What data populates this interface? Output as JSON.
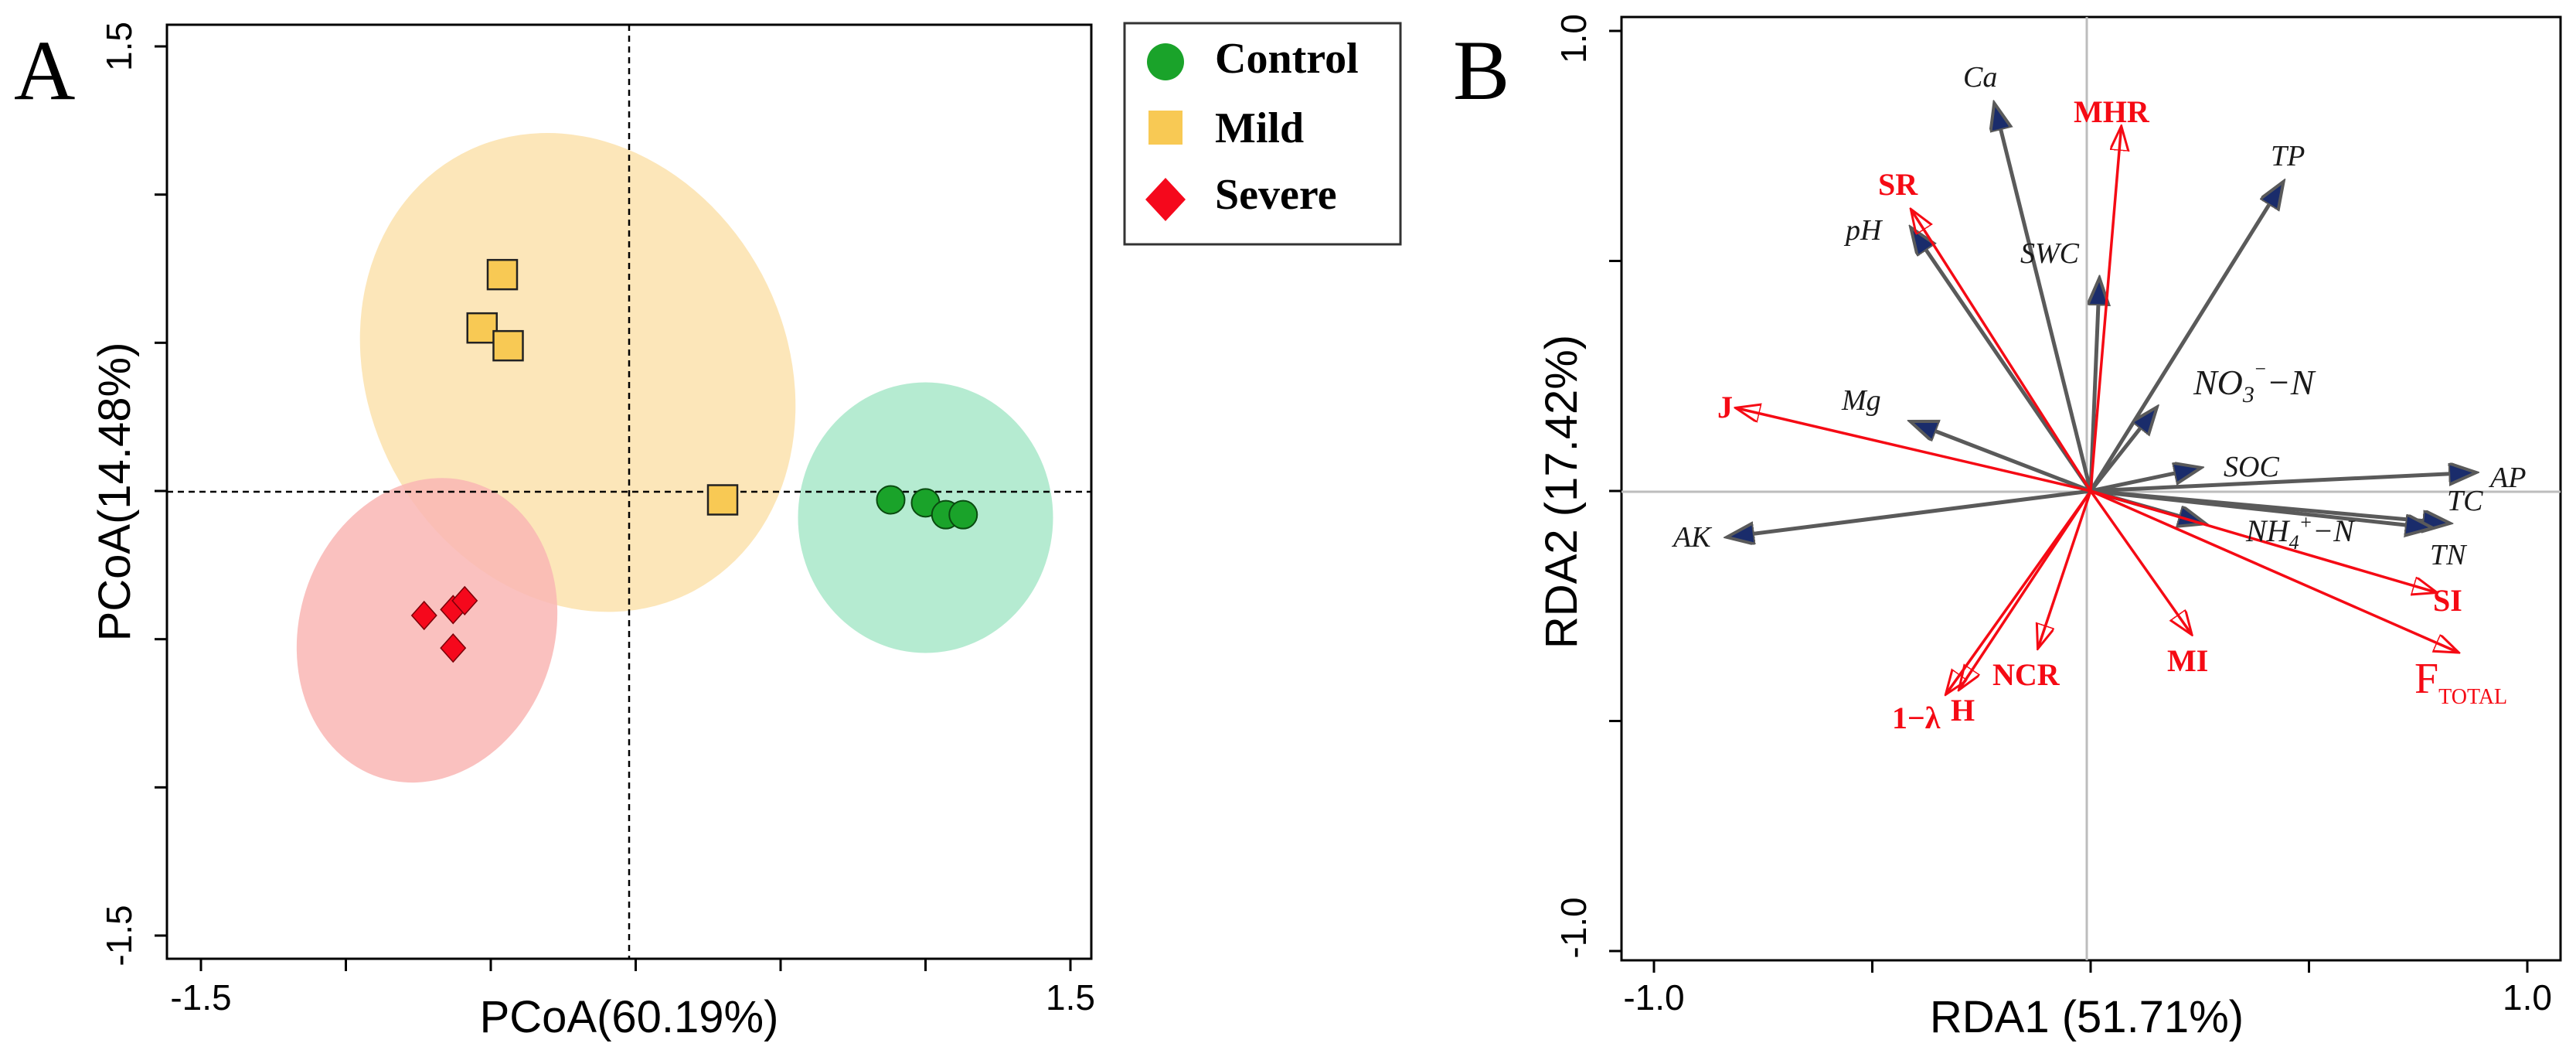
{
  "panels": {
    "a": {
      "letter": "A"
    },
    "b": {
      "letter": "B"
    }
  },
  "legend": {
    "items": [
      {
        "label": "Control",
        "marker": "circle",
        "color": "#1aa32a"
      },
      {
        "label": "Mild",
        "marker": "square",
        "color": "#f8c954"
      },
      {
        "label": "Severe",
        "marker": "diamond",
        "color": "#f5081c"
      }
    ]
  },
  "chart_data": [
    {
      "type": "scatter",
      "panel": "A",
      "xlabel": "PCoA(60.19%)",
      "ylabel": "PCoA(14.48%)",
      "xlim": [
        -1.5,
        1.5
      ],
      "ylim": [
        -1.5,
        1.5
      ],
      "x_tick_labels": [
        "-1.5",
        "1.5"
      ],
      "y_tick_labels": [
        "-1.5",
        "1.5"
      ],
      "reference_lines": {
        "x": 0,
        "y": 0
      },
      "series": [
        {
          "name": "Control",
          "marker": "circle",
          "color": "#1aa32a",
          "ellipse_color": "#a8e8c9",
          "points": [
            [
              0.88,
              -0.03
            ],
            [
              1.0,
              -0.04
            ],
            [
              1.07,
              -0.08
            ],
            [
              1.13,
              -0.08
            ]
          ]
        },
        {
          "name": "Mild",
          "marker": "square",
          "color": "#f8c954",
          "ellipse_color": "#fbe2ad",
          "points": [
            [
              -0.46,
              0.73
            ],
            [
              -0.53,
              0.55
            ],
            [
              -0.44,
              0.49
            ],
            [
              0.3,
              -0.03
            ]
          ]
        },
        {
          "name": "Severe",
          "marker": "diamond",
          "color": "#f5081c",
          "ellipse_color": "#f9b6b4",
          "points": [
            [
              -0.63,
              -0.4
            ],
            [
              -0.59,
              -0.37
            ],
            [
              -0.63,
              -0.53
            ],
            [
              -0.73,
              -0.42
            ]
          ]
        }
      ]
    },
    {
      "type": "scatter",
      "subtype": "rda-biplot",
      "panel": "B",
      "xlabel": "RDA1 (51.71%)",
      "ylabel": "RDA2 (17.42%)",
      "xlim": [
        -1.0,
        1.0
      ],
      "ylim": [
        -1.0,
        1.0
      ],
      "x_tick_labels": [
        "-1.0",
        "1.0"
      ],
      "y_tick_labels": [
        "-1.0",
        "1.0"
      ],
      "environment_vectors": [
        {
          "name": "Ca",
          "x": -0.22,
          "y": 0.84
        },
        {
          "name": "TP",
          "x": 0.44,
          "y": 0.67
        },
        {
          "name": "pH",
          "x": -0.41,
          "y": 0.57
        },
        {
          "name": "SWC",
          "x": 0.02,
          "y": 0.46
        },
        {
          "name": "NO3⁻–N",
          "x": 0.15,
          "y": 0.18
        },
        {
          "name": "Mg",
          "x": -0.41,
          "y": 0.15
        },
        {
          "name": "SOC",
          "x": 0.25,
          "y": 0.05
        },
        {
          "name": "AP",
          "x": 0.88,
          "y": 0.04
        },
        {
          "name": "TC",
          "x": 0.82,
          "y": -0.07
        },
        {
          "name": "TN",
          "x": 0.78,
          "y": -0.08
        },
        {
          "name": "NH4⁺–N",
          "x": 0.26,
          "y": -0.07
        },
        {
          "name": "AK",
          "x": -0.83,
          "y": -0.1
        }
      ],
      "response_vectors": [
        {
          "name": "MHR",
          "x": 0.07,
          "y": 0.79
        },
        {
          "name": "SR",
          "x": -0.41,
          "y": 0.61
        },
        {
          "name": "J",
          "x": -0.81,
          "y": 0.18
        },
        {
          "name": "SI",
          "x": 0.79,
          "y": -0.22
        },
        {
          "name": "F_TOTAL",
          "x": 0.84,
          "y": -0.35
        },
        {
          "name": "MI",
          "x": 0.23,
          "y": -0.31
        },
        {
          "name": "NCR",
          "x": -0.12,
          "y": -0.34
        },
        {
          "name": "H",
          "x": -0.3,
          "y": -0.43
        },
        {
          "name": "1−λ",
          "x": -0.33,
          "y": -0.44
        }
      ]
    }
  ],
  "labels_b": {
    "Ca": "Ca",
    "TP": "TP",
    "pH": "pH",
    "SWC": "SWC",
    "NO3_base": "NO",
    "NO3_sub": "3",
    "NO3_sup": "⁻",
    "NO3_tail": "−N",
    "Mg": "Mg",
    "SOC": "SOC",
    "AP": "AP",
    "TC": "TC",
    "TN": "TN",
    "NH4_base": "NH",
    "NH4_sub": "4",
    "NH4_sup": "+",
    "NH4_tail": "−N",
    "AK": "AK",
    "MHR": "MHR",
    "SR": "SR",
    "J": "J",
    "SI": "SI",
    "F_base": "F",
    "F_sub": "TOTAL",
    "MI": "MI",
    "NCR": "NCR",
    "H": "H",
    "lambda": "1−λ"
  },
  "colors": {
    "axis": "#000000",
    "guide_b": "#bdbdbd",
    "env_arrow": "#5a5a5a",
    "env_head": "#1a2c6b",
    "response_arrow": "#f50a14"
  }
}
